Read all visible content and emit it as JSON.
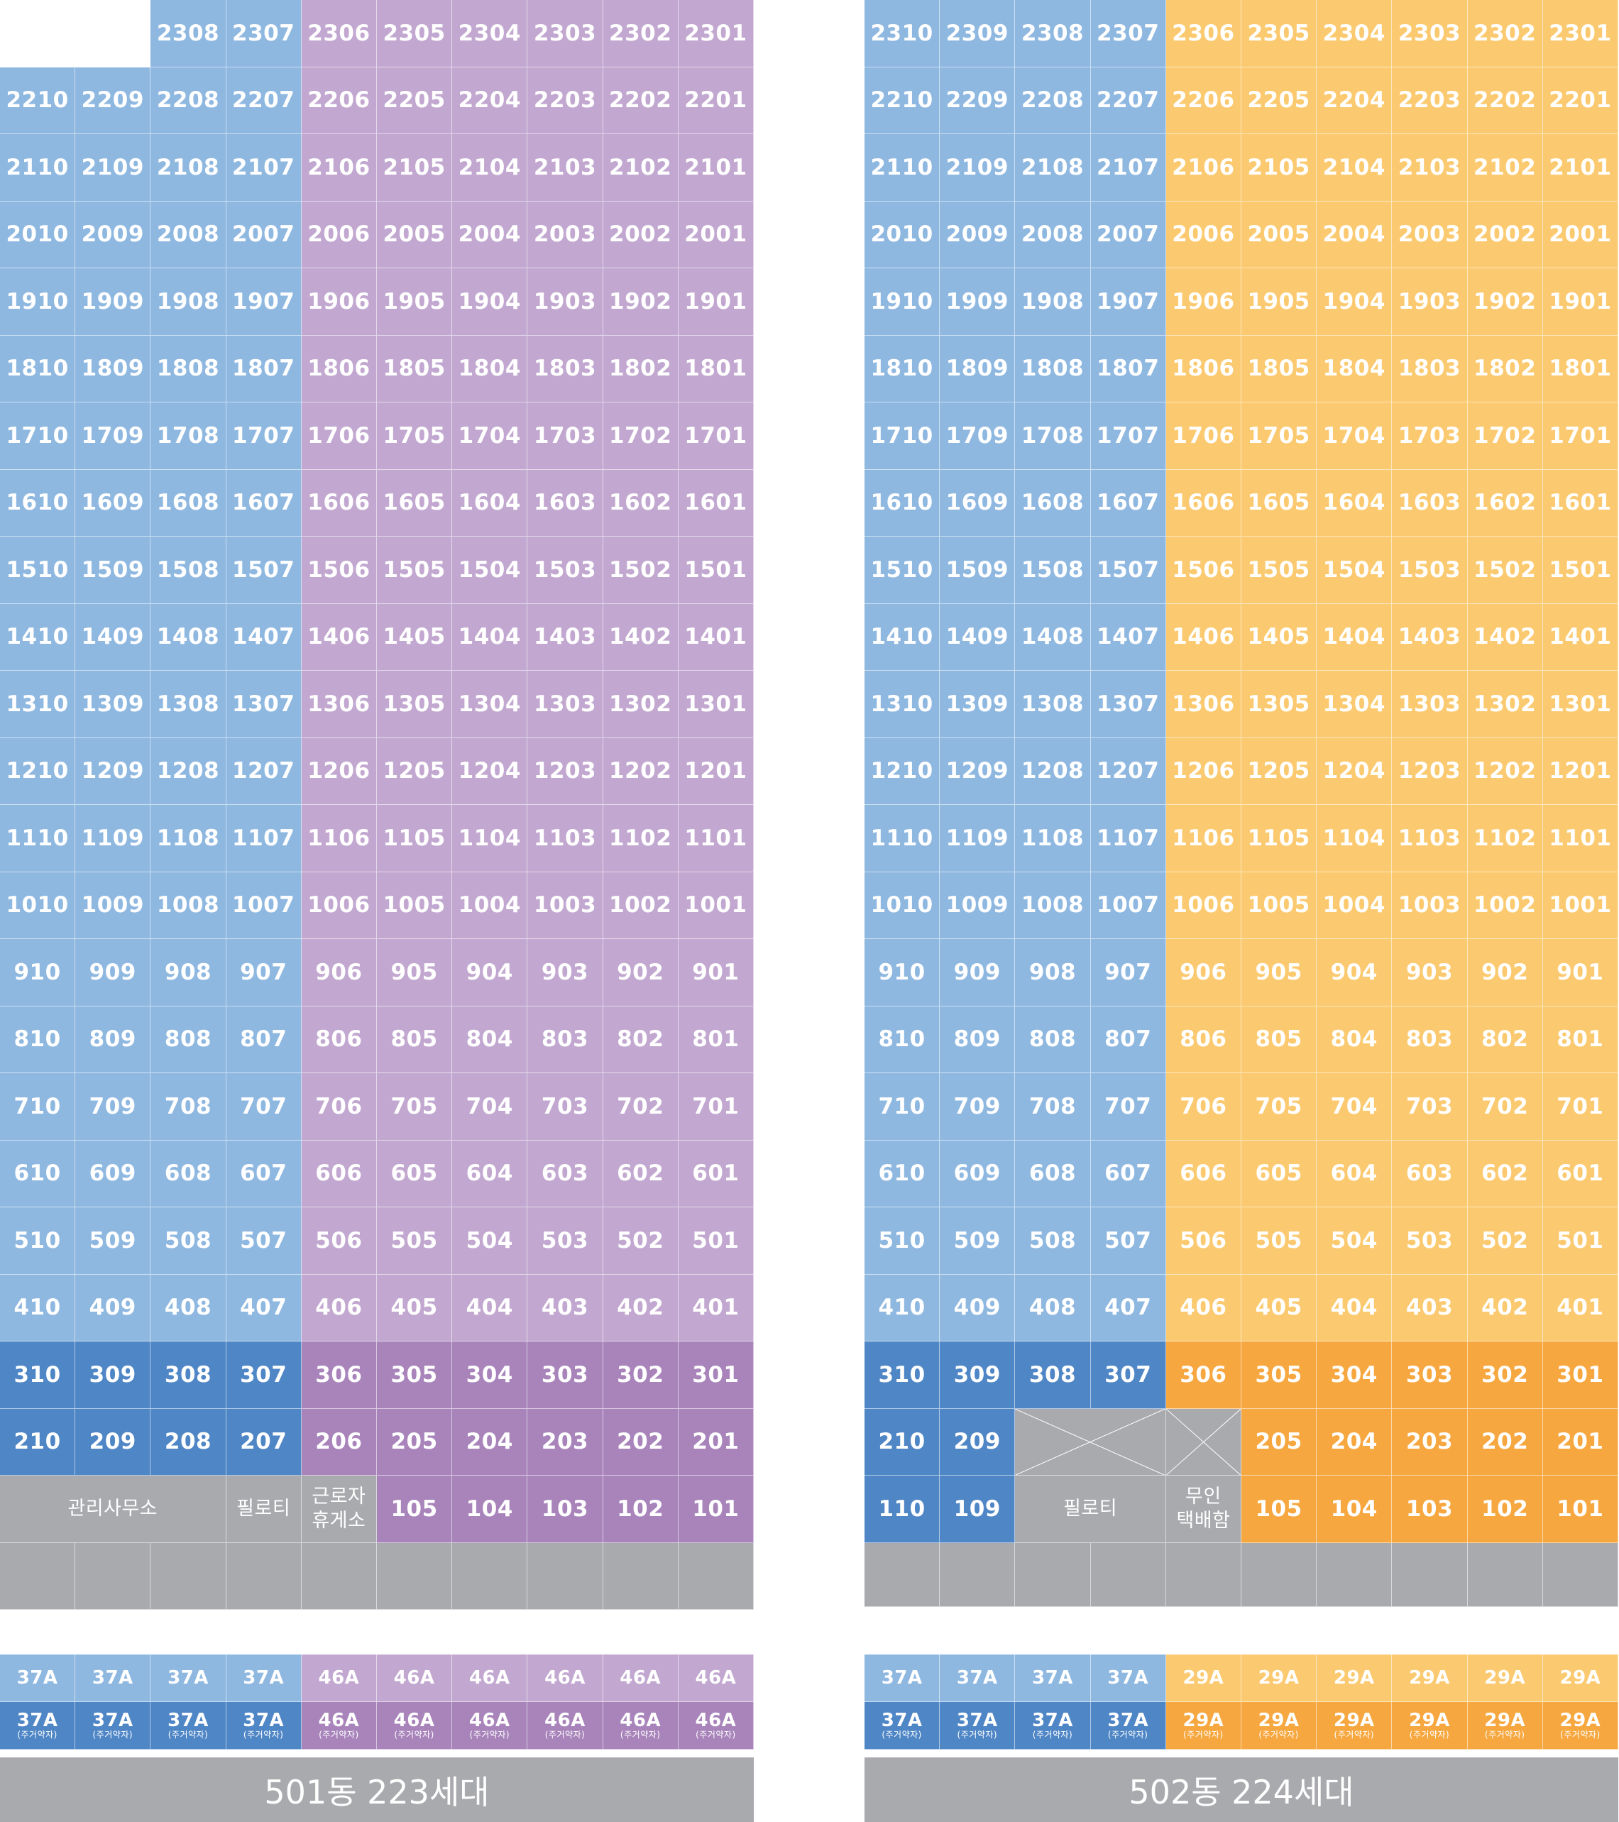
{
  "buildings": [
    {
      "id": "b501",
      "footer": "501동 223세대",
      "top_floor": 23,
      "top_floor_units": [
        8,
        7,
        6,
        5,
        4,
        3,
        2,
        1
      ],
      "lowest_regular_floor": 2,
      "blue_unit_count": 4,
      "dark_floors": [
        3,
        2
      ],
      "ground_floor": [
        {
          "label": "관리사무소",
          "span": 3,
          "color": "gray"
        },
        {
          "label": "필로티",
          "span": 1,
          "color": "gray"
        },
        {
          "label": "근로자\n휴게소",
          "span": 1,
          "color": "gray"
        },
        {
          "label": "105",
          "span": 1,
          "color": "purple-dark"
        },
        {
          "label": "104",
          "span": 1,
          "color": "purple-dark"
        },
        {
          "label": "103",
          "span": 1,
          "color": "purple-dark"
        },
        {
          "label": "102",
          "span": 1,
          "color": "purple-dark"
        },
        {
          "label": "101",
          "span": 1,
          "color": "purple-dark"
        }
      ],
      "legend_types": [
        "37A",
        "37A",
        "37A",
        "37A",
        "46A",
        "46A",
        "46A",
        "46A",
        "46A",
        "46A"
      ],
      "legend_note": "(주거약자)"
    },
    {
      "id": "b502",
      "footer": "502동 224세대",
      "top_floor": 23,
      "top_floor_units": [
        10,
        9,
        8,
        7,
        6,
        5,
        4,
        3,
        2,
        1
      ],
      "lowest_regular_floor": 3,
      "blue_unit_count": 4,
      "dark_floors": [
        3,
        2
      ],
      "second_floor": [
        {
          "label": "210",
          "span": 1,
          "color": "blue-dark"
        },
        {
          "label": "209",
          "span": 1,
          "color": "blue-dark"
        },
        {
          "label": "",
          "span": 2,
          "color": "gray",
          "crossed": true
        },
        {
          "label": "",
          "span": 1,
          "color": "gray",
          "crossed": true
        },
        {
          "label": "205",
          "span": 1,
          "color": "orange-dark"
        },
        {
          "label": "204",
          "span": 1,
          "color": "orange-dark"
        },
        {
          "label": "203",
          "span": 1,
          "color": "orange-dark"
        },
        {
          "label": "202",
          "span": 1,
          "color": "orange-dark"
        },
        {
          "label": "201",
          "span": 1,
          "color": "orange-dark"
        }
      ],
      "ground_floor": [
        {
          "label": "110",
          "span": 1,
          "color": "blue-dark"
        },
        {
          "label": "109",
          "span": 1,
          "color": "blue-dark"
        },
        {
          "label": "필로티",
          "span": 2,
          "color": "gray"
        },
        {
          "label": "무인\n택배함",
          "span": 1,
          "color": "gray"
        },
        {
          "label": "105",
          "span": 1,
          "color": "orange-dark"
        },
        {
          "label": "104",
          "span": 1,
          "color": "orange-dark"
        },
        {
          "label": "103",
          "span": 1,
          "color": "orange-dark"
        },
        {
          "label": "102",
          "span": 1,
          "color": "orange-dark"
        },
        {
          "label": "101",
          "span": 1,
          "color": "orange-dark"
        }
      ],
      "legend_types": [
        "37A",
        "37A",
        "37A",
        "37A",
        "29A",
        "29A",
        "29A",
        "29A",
        "29A",
        "29A"
      ],
      "legend_note": "(주거약자)"
    }
  ],
  "colors": {
    "blue-light": "#8fb8e1",
    "blue-dark": "#4f86c6",
    "purple-light": "#c2a8d0",
    "purple-dark": "#a884bb",
    "yellow-light": "#fbca70",
    "orange-dark": "#f7a73f",
    "gray": "#a9aaae"
  }
}
